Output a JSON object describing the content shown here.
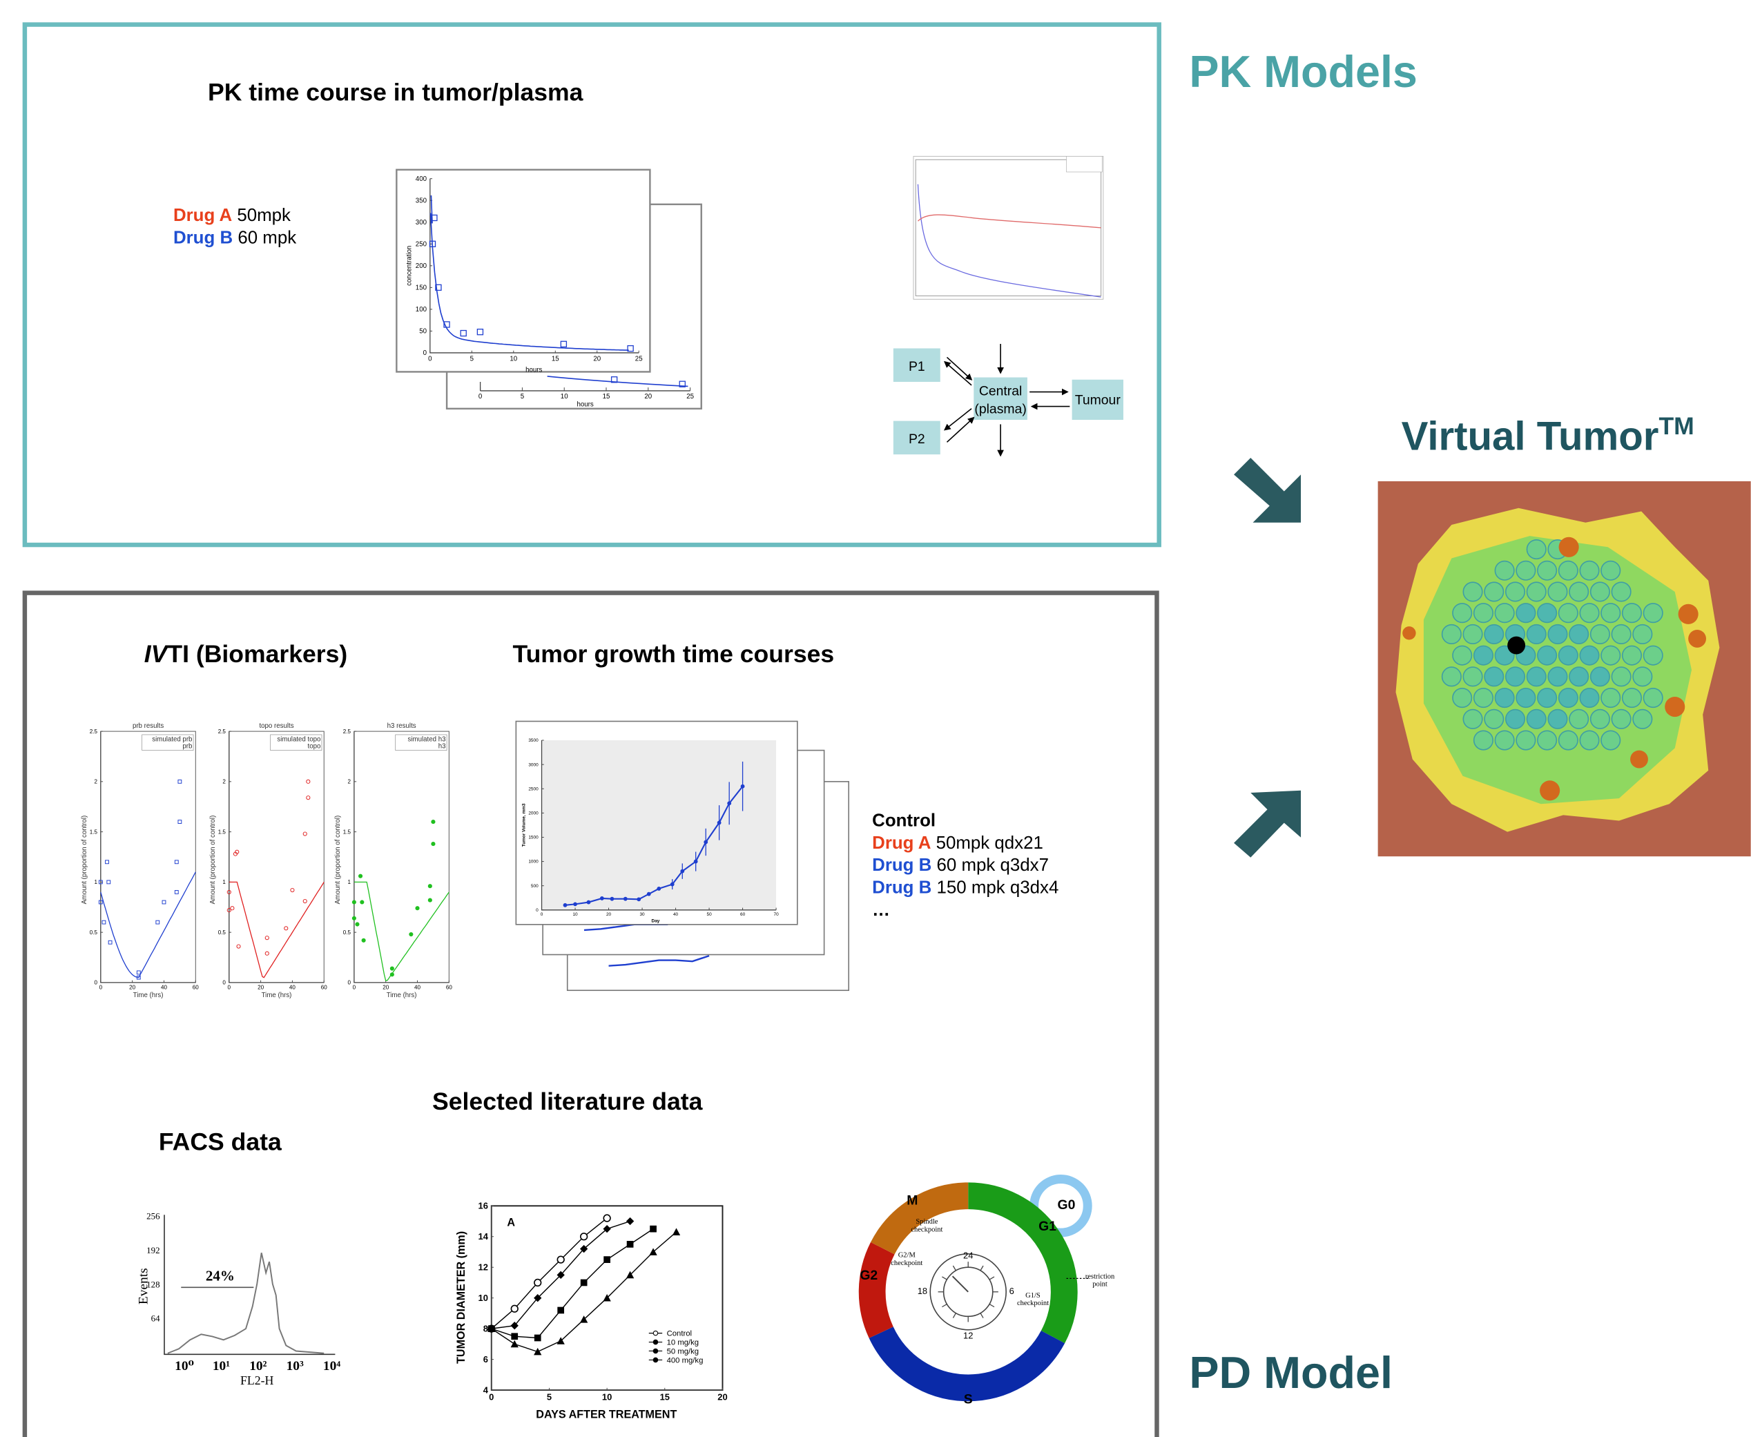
{
  "pk_label": "PK Models",
  "pk_panel": {
    "title": "PK time course in tumor/plasma",
    "legend": [
      {
        "drug": "Drug A",
        "dose": "50mpk"
      },
      {
        "drug": "Drug B",
        "dose": "60 mpk"
      }
    ],
    "plot": {
      "x_label": "hours",
      "y_label": "concentration",
      "xticks": [
        0,
        5,
        10,
        15,
        20,
        25
      ],
      "yticks": [
        0,
        50,
        100,
        150,
        200,
        250,
        300,
        350,
        400
      ]
    },
    "compartments": {
      "p1": "P1",
      "p2": "P2",
      "central": "Central",
      "central_sub": "(plasma)",
      "tumour": "Tumour"
    }
  },
  "virtual_tumor": {
    "title": "Virtual Tumor",
    "superscript": "TM"
  },
  "pd_label": "PD Model",
  "pd_panel": {
    "ivti_title": {
      "italic": "IV",
      "rest": "TI (Biomarkers)"
    },
    "biomarker_plots": [
      {
        "title": "prb results",
        "legend": [
          "simulated prb",
          "prb"
        ]
      },
      {
        "title": "topo results",
        "legend": [
          "simulated topo",
          "topo"
        ]
      },
      {
        "title": "h3 results",
        "legend": [
          "simulated h3",
          "h3"
        ]
      }
    ],
    "biomarker_axes": {
      "x_label": "Time (hrs)",
      "y_label": "Amount (proportion of control)",
      "xticks": [
        0,
        20,
        40,
        60
      ],
      "yticks": [
        0,
        0.5,
        1,
        1.5,
        2,
        2.5
      ]
    },
    "growth_title": "Tumor growth time courses",
    "growth_plot": {
      "x_label": "Day",
      "y_label": "Tumor Volume, mm3",
      "xticks": [
        0,
        10,
        20,
        30,
        40,
        50,
        60,
        70
      ],
      "yticks": [
        0,
        500,
        1000,
        1500,
        2000,
        2500,
        3000,
        3500
      ]
    },
    "growth_legend": [
      {
        "drug": "Control",
        "dose": null
      },
      {
        "drug": "Drug A",
        "dose": "50mpk qdx21"
      },
      {
        "drug": "Drug B",
        "dose": "60 mpk q3dx7"
      },
      {
        "drug": "Drug B",
        "dose": "150 mpk q3dx4"
      },
      {
        "drug": "…",
        "dose": null
      }
    ],
    "literature_title": "Selected literature data",
    "facs_title": "FACS data",
    "facs": {
      "percent": "24%",
      "x_label": "FL2-H",
      "y_label": "Events",
      "yticks": [
        "256",
        "192",
        "128",
        "64"
      ],
      "xticks": [
        "10⁰",
        "10¹",
        "10²",
        "10³",
        "10⁴"
      ]
    },
    "diameter_plot": {
      "panel": "A",
      "x_label": "DAYS AFTER TREATMENT",
      "y_label": "TUMOR DIAMETER (mm)",
      "xticks": [
        0,
        5,
        10,
        15,
        20
      ],
      "yticks": [
        4,
        6,
        8,
        10,
        12,
        14,
        16
      ],
      "legend": [
        "Control",
        "10 mg/kg",
        "50 mg/kg",
        "400 mg/kg"
      ]
    },
    "cell_cycle": {
      "phases": {
        "m": "M",
        "g1": "G1",
        "g2": "G2",
        "s": "S",
        "g0": "G0"
      },
      "checkpoints": {
        "spindle": [
          "Spindle",
          "checkpoint"
        ],
        "g2m": [
          "G2/M",
          "checkpoint"
        ],
        "g1s": [
          "G1/S",
          "checkpoint"
        ],
        "restriction": [
          "restriction",
          "point"
        ]
      },
      "clock": [
        "24",
        "6",
        "12",
        "18"
      ]
    }
  }
}
